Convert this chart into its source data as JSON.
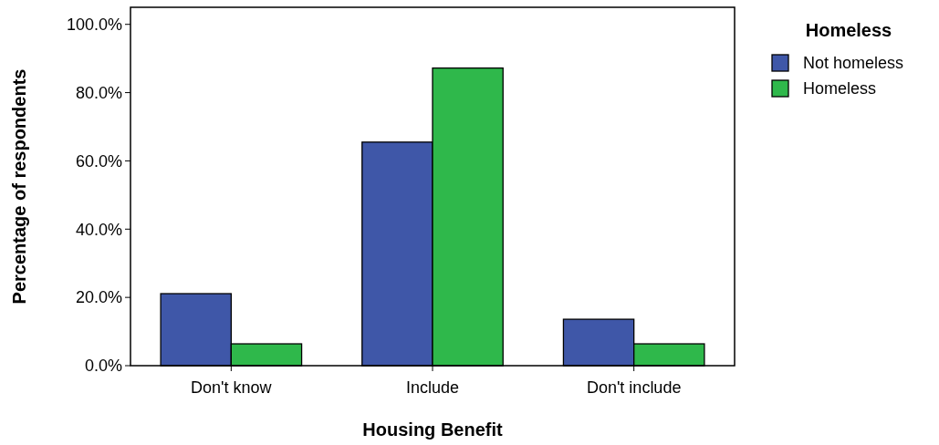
{
  "chart_data": {
    "type": "bar",
    "xlabel": "Housing Benefit",
    "ylabel": "Percentage of respondents",
    "legend_title": "Homeless",
    "categories": [
      "Don't know",
      "Include",
      "Don't include"
    ],
    "series": [
      {
        "name": "Not homeless",
        "color": "#3f57a8",
        "values": [
          21.1,
          65.5,
          13.6
        ]
      },
      {
        "name": "Homeless",
        "color": "#2fb84b",
        "values": [
          6.4,
          87.2,
          6.4
        ]
      }
    ],
    "ylim": [
      0,
      105
    ],
    "yticks": [
      {
        "value": 0,
        "label": "0.0%"
      },
      {
        "value": 20,
        "label": "20.0%"
      },
      {
        "value": 40,
        "label": "40.0%"
      },
      {
        "value": 60,
        "label": "60.0%"
      },
      {
        "value": 80,
        "label": "80.0%"
      },
      {
        "value": 100,
        "label": "100.0%"
      }
    ],
    "legend": "top right",
    "grid": false
  }
}
